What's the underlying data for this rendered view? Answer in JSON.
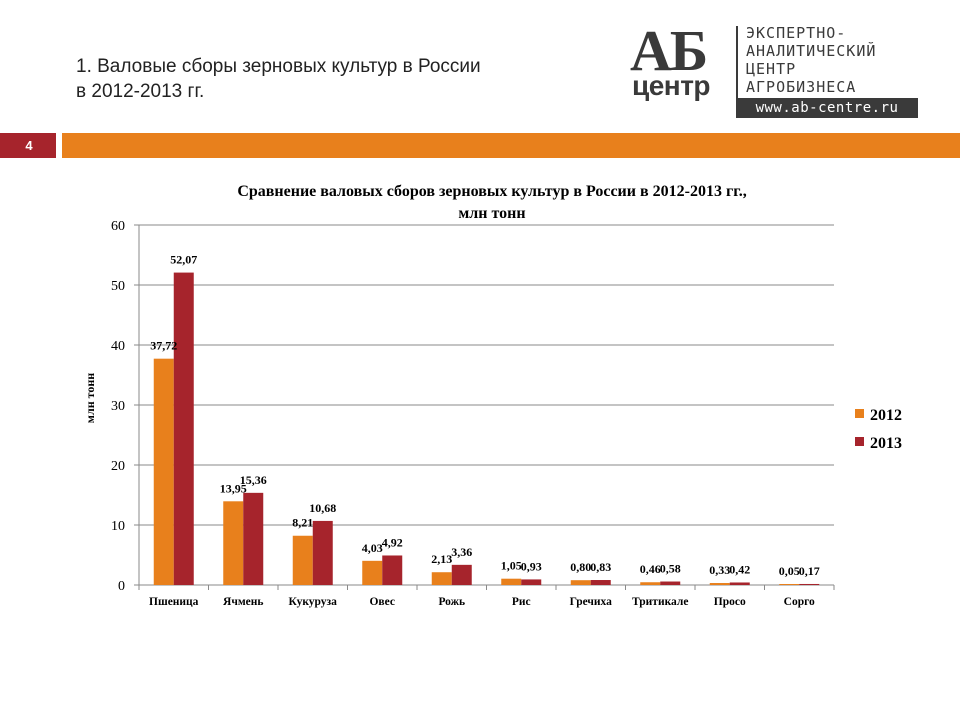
{
  "slide": {
    "title_line1": "1. Валовые сборы зерновых культур в России",
    "title_line2": "в 2012-2013 гг.",
    "page_number": "4"
  },
  "logo": {
    "mark_line1": "АБ",
    "mark_line2": "центр",
    "text_lines": [
      "ЭКСПЕРТНО-",
      "АНАЛИТИЧЕСКИЙ",
      "ЦЕНТР",
      "АГРОБИЗНЕСА"
    ],
    "url": "www.ab-centre.ru"
  },
  "colors": {
    "accent_orange": "#e8801c",
    "accent_red": "#a6242c",
    "series_2012": "#e8801c",
    "series_2013": "#a6242c"
  },
  "chart_data": {
    "type": "bar",
    "title_line1": "Сравнение валовых сборов зерновых культур в России в 2012-2013 гг.,",
    "title_line2": "млн тонн",
    "xlabel": "",
    "ylabel": "млн тонн",
    "ylim": [
      0,
      60
    ],
    "yticks": [
      0,
      10,
      20,
      30,
      40,
      50,
      60
    ],
    "grid": true,
    "legend_position": "right",
    "categories": [
      "Пшеница",
      "Ячмень",
      "Кукуруза",
      "Овес",
      "Рожь",
      "Рис",
      "Гречиха",
      "Тритикале",
      "Просо",
      "Сорго"
    ],
    "series": [
      {
        "name": "2012",
        "color": "#e8801c",
        "values": [
          37.72,
          13.95,
          8.21,
          4.03,
          2.13,
          1.05,
          0.8,
          0.46,
          0.33,
          0.05
        ],
        "labels": [
          "37,72",
          "13,95",
          "8,21",
          "4,03",
          "2,13",
          "1,05",
          "0,80",
          "0,46",
          "0,33",
          "0,05"
        ]
      },
      {
        "name": "2013",
        "color": "#a6242c",
        "values": [
          52.07,
          15.36,
          10.68,
          4.92,
          3.36,
          0.93,
          0.83,
          0.58,
          0.42,
          0.17
        ],
        "labels": [
          "52,07",
          "15,36",
          "10,68",
          "4,92",
          "3,36",
          "0,93",
          "0,83",
          "0,58",
          "0,42",
          "0,17"
        ]
      }
    ]
  }
}
